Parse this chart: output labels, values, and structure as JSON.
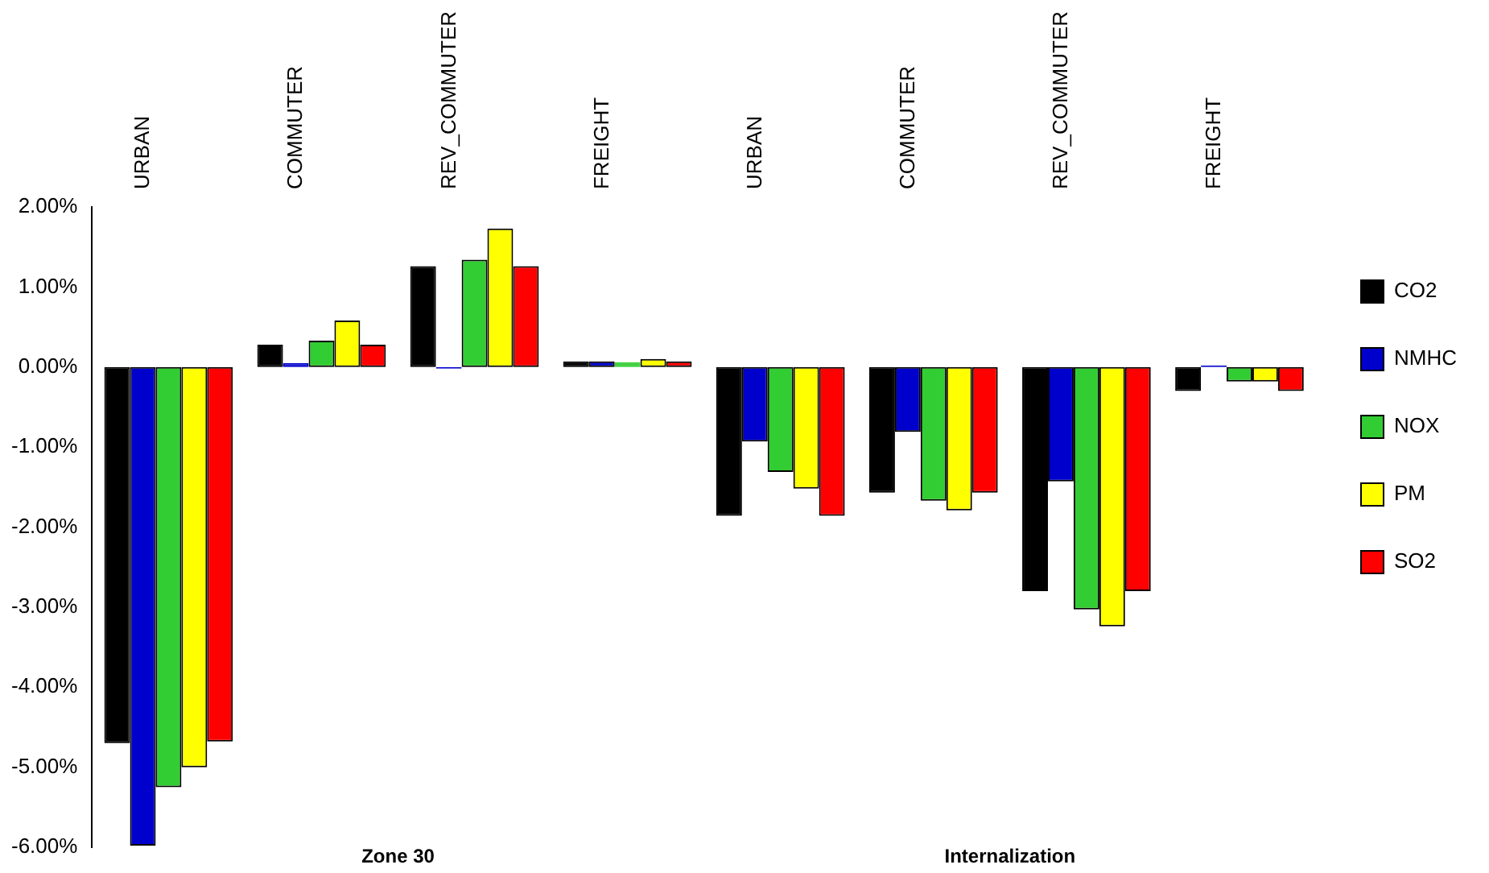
{
  "chart_data": {
    "type": "bar",
    "categories": [
      "URBAN",
      "COMMUTER",
      "REV_COMMUTER",
      "FREIGHT",
      "URBAN",
      "COMMUTER",
      "REV_COMMUTER",
      "FREIGHT"
    ],
    "series": [
      {
        "name": "CO2",
        "color": "#000000",
        "values": [
          -4.7,
          0.28,
          1.26,
          0.07,
          -1.86,
          -1.57,
          -2.8,
          -0.3
        ]
      },
      {
        "name": "NMHC",
        "color": "#0000cd",
        "values": [
          -5.98,
          0.05,
          -0.02,
          0.07,
          -0.93,
          -0.81,
          -1.43,
          0.02
        ]
      },
      {
        "name": "NOX",
        "color": "#32cd32",
        "values": [
          -5.25,
          0.33,
          1.34,
          0.06,
          -1.31,
          -1.67,
          -3.03,
          -0.18
        ]
      },
      {
        "name": "PM",
        "color": "#ffff00",
        "values": [
          -5.0,
          0.58,
          1.73,
          0.1,
          -1.52,
          -1.79,
          -3.24,
          -0.18
        ]
      },
      {
        "name": "SO2",
        "color": "#ff0000",
        "values": [
          -4.68,
          0.28,
          1.26,
          0.07,
          -1.86,
          -1.57,
          -2.8,
          -0.3
        ]
      }
    ],
    "ylim": [
      -6,
      2
    ],
    "yticks": [
      {
        "value": -6,
        "label": "-6.00%"
      },
      {
        "value": -5,
        "label": "-5.00%"
      },
      {
        "value": -4,
        "label": "-4.00%"
      },
      {
        "value": -3,
        "label": "-3.00%"
      },
      {
        "value": -2,
        "label": "-2.00%"
      },
      {
        "value": -1,
        "label": "-1.00%"
      },
      {
        "value": 0,
        "label": "0.00%"
      },
      {
        "value": 1,
        "label": "1.00%"
      },
      {
        "value": 2,
        "label": "2.00%"
      }
    ],
    "annotations": [
      "Zone 30",
      "Internalization"
    ],
    "grid": false,
    "legend": "right"
  }
}
